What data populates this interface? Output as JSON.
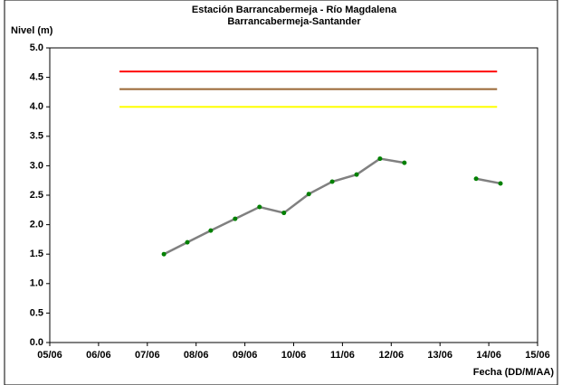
{
  "chart_data": {
    "type": "line",
    "title": "Estación Barrancabermeja - Río Magdalena",
    "subtitle": "Barrancabermeja-Santander",
    "y_label": "Nivel (m)",
    "x_label": "Fecha (DD/M/AA)",
    "xlim": [
      5,
      15
    ],
    "xticks": [
      {
        "value": 5,
        "label": "05/06"
      },
      {
        "value": 6,
        "label": "06/06"
      },
      {
        "value": 7,
        "label": "07/06"
      },
      {
        "value": 8,
        "label": "08/06"
      },
      {
        "value": 9,
        "label": "09/06"
      },
      {
        "value": 10,
        "label": "10/06"
      },
      {
        "value": 11,
        "label": "11/06"
      },
      {
        "value": 12,
        "label": "12/06"
      },
      {
        "value": 13,
        "label": "13/06"
      },
      {
        "value": 14,
        "label": "14/06"
      },
      {
        "value": 15,
        "label": "15/06"
      }
    ],
    "ylim": [
      0,
      5
    ],
    "yticks": [
      {
        "value": 0,
        "label": "0.0"
      },
      {
        "value": 0.5,
        "label": "0.5"
      },
      {
        "value": 1,
        "label": "1.0"
      },
      {
        "value": 1.5,
        "label": "1.5"
      },
      {
        "value": 2,
        "label": "2.0"
      },
      {
        "value": 2.5,
        "label": "2.5"
      },
      {
        "value": 3,
        "label": "3.0"
      },
      {
        "value": 3.5,
        "label": "3.5"
      },
      {
        "value": 4,
        "label": "4.0"
      },
      {
        "value": 4.5,
        "label": "4.5"
      },
      {
        "value": 5,
        "label": "5.0"
      }
    ],
    "series": [
      {
        "color": "#ff0000",
        "x": [
          6.43,
          14.17
        ],
        "values": [
          4.6,
          4.6
        ]
      },
      {
        "color": "#996633",
        "x": [
          6.43,
          14.17
        ],
        "values": [
          4.3,
          4.3
        ]
      },
      {
        "color": "#ffff00",
        "x": [
          6.43,
          14.17
        ],
        "values": [
          4.0,
          4.0
        ]
      },
      {
        "color": "#808080",
        "marker_color": "#008000",
        "x": [
          7.34,
          7.82,
          8.3,
          8.8,
          9.3,
          9.8,
          10.31,
          10.79,
          11.29,
          11.77,
          12.27,
          12.77,
          13.27,
          13.74,
          14.24
        ],
        "values": [
          1.5,
          1.7,
          1.9,
          2.1,
          2.3,
          2.2,
          2.52,
          2.73,
          2.85,
          3.12,
          3.05,
          null,
          null,
          2.78,
          2.7
        ]
      }
    ]
  }
}
